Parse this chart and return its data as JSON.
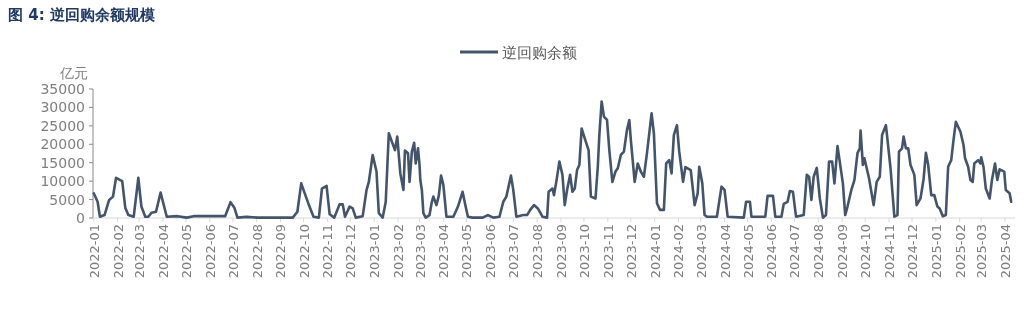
{
  "chart_data": {
    "type": "line",
    "title": "图 4: 逆回购余额规模",
    "ylabel": "亿元",
    "legend": "top",
    "x": [
      "2022-01-01",
      "2022-01-06",
      "2022-01-09",
      "2022-01-15",
      "2022-01-21",
      "2022-01-26",
      "2022-01-30",
      "2022-02-07",
      "2022-02-11",
      "2022-02-15",
      "2022-02-22",
      "2022-02-28",
      "2022-03-04",
      "2022-03-09",
      "2022-03-13",
      "2022-03-17",
      "2022-03-23",
      "2022-03-29",
      "2022-04-06",
      "2022-04-20",
      "2022-05-02",
      "2022-05-11",
      "2022-06-21",
      "2022-06-28",
      "2022-07-03",
      "2022-07-07",
      "2022-07-19",
      "2022-08-02",
      "2022-09-17",
      "2022-09-23",
      "2022-09-28",
      "2022-10-08",
      "2022-10-14",
      "2022-10-21",
      "2022-10-25",
      "2022-10-31",
      "2022-11-04",
      "2022-11-10",
      "2022-11-17",
      "2022-11-21",
      "2022-11-24",
      "2022-11-30",
      "2022-12-04",
      "2022-12-08",
      "2022-12-17",
      "2022-12-22",
      "2022-12-25",
      "2022-12-30",
      "2023-01-04",
      "2023-01-07",
      "2023-01-12",
      "2023-01-16",
      "2023-01-20",
      "2023-01-28",
      "2023-01-31",
      "2023-02-04",
      "2023-02-08",
      "2023-02-10",
      "2023-02-14",
      "2023-02-16",
      "2023-02-19",
      "2023-02-22",
      "2023-02-24",
      "2023-02-27",
      "2023-03-01",
      "2023-03-02",
      "2023-03-04",
      "2023-03-06",
      "2023-03-09",
      "2023-03-14",
      "2023-03-17",
      "2023-03-19",
      "2023-03-23",
      "2023-03-26",
      "2023-03-29",
      "2023-04-01",
      "2023-04-05",
      "2023-04-14",
      "2023-04-20",
      "2023-04-26",
      "2023-04-30",
      "2023-05-03",
      "2023-05-09",
      "2023-05-22",
      "2023-05-29",
      "2023-06-05",
      "2023-06-13",
      "2023-06-18",
      "2023-06-22",
      "2023-06-28",
      "2023-07-01",
      "2023-07-05",
      "2023-07-14",
      "2023-07-19",
      "2023-07-23",
      "2023-07-28",
      "2023-08-02",
      "2023-08-08",
      "2023-08-14",
      "2023-08-16",
      "2023-08-21",
      "2023-08-23",
      "2023-08-26",
      "2023-08-30",
      "2023-09-03",
      "2023-09-06",
      "2023-09-09",
      "2023-09-13",
      "2023-09-16",
      "2023-09-19",
      "2023-09-22",
      "2023-09-25",
      "2023-09-28",
      "2023-10-02",
      "2023-10-07",
      "2023-10-10",
      "2023-10-16",
      "2023-10-19",
      "2023-10-21",
      "2023-10-24",
      "2023-10-27",
      "2023-10-31",
      "2023-11-03",
      "2023-11-07",
      "2023-11-11",
      "2023-11-14",
      "2023-11-18",
      "2023-11-22",
      "2023-11-26",
      "2023-11-29",
      "2023-12-01",
      "2023-12-06",
      "2023-12-10",
      "2023-12-14",
      "2023-12-18",
      "2023-12-22",
      "2023-12-28",
      "2023-12-31",
      "2024-01-04",
      "2024-01-08",
      "2024-01-13",
      "2024-01-16",
      "2024-01-20",
      "2024-01-23",
      "2024-01-26",
      "2024-01-30",
      "2024-02-02",
      "2024-02-07",
      "2024-02-10",
      "2024-02-17",
      "2024-02-22",
      "2024-02-26",
      "2024-02-28",
      "2024-03-03",
      "2024-03-06",
      "2024-03-09",
      "2024-03-22",
      "2024-03-28",
      "2024-04-01",
      "2024-04-05",
      "2024-04-26",
      "2024-04-29",
      "2024-05-04",
      "2024-05-06",
      "2024-05-24",
      "2024-05-27",
      "2024-06-03",
      "2024-06-06",
      "2024-06-14",
      "2024-06-17",
      "2024-06-22",
      "2024-06-25",
      "2024-06-29",
      "2024-07-03",
      "2024-07-13",
      "2024-07-17",
      "2024-07-20",
      "2024-07-23",
      "2024-07-26",
      "2024-07-30",
      "2024-08-03",
      "2024-08-07",
      "2024-08-11",
      "2024-08-15",
      "2024-08-19",
      "2024-08-22",
      "2024-08-26",
      "2024-09-02",
      "2024-09-05",
      "2024-09-08",
      "2024-09-13",
      "2024-09-17",
      "2024-09-21",
      "2024-09-24",
      "2024-09-25",
      "2024-09-28",
      "2024-09-30",
      "2024-10-06",
      "2024-10-12",
      "2024-10-16",
      "2024-10-20",
      "2024-10-23",
      "2024-10-28",
      "2024-11-03",
      "2024-11-08",
      "2024-11-12",
      "2024-11-14",
      "2024-11-18",
      "2024-11-20",
      "2024-11-23",
      "2024-11-26",
      "2024-11-29",
      "2024-12-04",
      "2024-12-07",
      "2024-12-12",
      "2024-12-16",
      "2024-12-19",
      "2024-12-22",
      "2024-12-26",
      "2024-12-30",
      "2025-01-03",
      "2025-01-06",
      "2025-01-10",
      "2025-01-14",
      "2025-01-17",
      "2025-01-21",
      "2025-01-24",
      "2025-01-27",
      "2025-02-02",
      "2025-02-06",
      "2025-02-08",
      "2025-02-12",
      "2025-02-15",
      "2025-02-18",
      "2025-02-20",
      "2025-02-25",
      "2025-02-28",
      "2025-03-01",
      "2025-03-04",
      "2025-03-07",
      "2025-03-12",
      "2025-03-15",
      "2025-03-19",
      "2025-03-22",
      "2025-03-25",
      "2025-03-31",
      "2025-04-02",
      "2025-04-07",
      "2025-04-09"
    ],
    "series": [
      {
        "name": "逆回购余额",
        "color": "#44546a",
        "values": [
          6700,
          4400,
          350,
          800,
          4900,
          5800,
          10900,
          10000,
          2800,
          800,
          350,
          10900,
          3100,
          350,
          350,
          1400,
          1700,
          6900,
          350,
          500,
          100,
          500,
          500,
          4300,
          2800,
          100,
          300,
          100,
          100,
          1700,
          9400,
          3500,
          350,
          100,
          8000,
          8700,
          1000,
          100,
          3700,
          3700,
          350,
          3100,
          2600,
          100,
          500,
          7600,
          9800,
          17100,
          12600,
          1300,
          100,
          4400,
          23000,
          18400,
          22100,
          12100,
          7600,
          18300,
          17600,
          9800,
          18000,
          20400,
          14800,
          18900,
          14400,
          10300,
          7600,
          1300,
          100,
          800,
          4400,
          5800,
          3500,
          6000,
          11500,
          9000,
          350,
          350,
          3100,
          7100,
          3100,
          350,
          100,
          100,
          800,
          100,
          350,
          4400,
          5800,
          11500,
          7600,
          350,
          800,
          800,
          2200,
          3500,
          2600,
          350,
          100,
          7100,
          8000,
          6200,
          9800,
          15300,
          11700,
          3500,
          7600,
          11700,
          7100,
          8000,
          13000,
          14400,
          24300,
          21600,
          18400,
          5800,
          5300,
          13900,
          22500,
          31600,
          27500,
          26600,
          18400,
          9800,
          12600,
          13500,
          17100,
          18000,
          23900,
          26600,
          21200,
          9800,
          14800,
          12600,
          11200,
          17600,
          28400,
          23000,
          4000,
          2200,
          2200,
          14800,
          15700,
          12100,
          22500,
          25200,
          18000,
          9800,
          13800,
          13000,
          3500,
          6700,
          13900,
          9400,
          800,
          350,
          350,
          8500,
          7600,
          350,
          100,
          4400,
          4400,
          350,
          350,
          6000,
          6000,
          350,
          350,
          3800,
          4400,
          7300,
          7100,
          350,
          800,
          11700,
          11200,
          4900,
          11200,
          13600,
          5300,
          100,
          800,
          15300,
          15300,
          9400,
          19500,
          9400,
          800,
          3100,
          7600,
          10300,
          17600,
          18900,
          23700,
          14400,
          16200,
          10800,
          3500,
          9800,
          11200,
          22500,
          25200,
          13500,
          350,
          800,
          18000,
          18900,
          22100,
          18900,
          18900,
          14400,
          11700,
          3500,
          5300,
          10500,
          17700,
          14400,
          6200,
          6200,
          3100,
          2600,
          500,
          800,
          13900,
          15700,
          21200,
          26100,
          23400,
          19800,
          16200,
          13900,
          10300,
          9800,
          14800,
          15700,
          14800,
          16500,
          13900,
          8000,
          5300,
          10300,
          14800,
          10300,
          13200,
          12600,
          7600,
          6700,
          4400
        ]
      }
    ],
    "xlim": [
      "2021-12-31",
      "2025-04-14"
    ],
    "xticks": [
      "2022-01",
      "2022-02",
      "2022-03",
      "2022-04",
      "2022-05",
      "2022-06",
      "2022-07",
      "2022-08",
      "2022-09",
      "2022-10",
      "2022-11",
      "2022-12",
      "2023-01",
      "2023-02",
      "2023-03",
      "2023-04",
      "2023-05",
      "2023-06",
      "2023-07",
      "2023-08",
      "2023-09",
      "2023-10",
      "2023-11",
      "2023-12",
      "2024-01",
      "2024-02",
      "2024-03",
      "2024-04",
      "2024-05",
      "2024-06",
      "2024-07",
      "2024-08",
      "2024-09",
      "2024-10",
      "2024-11",
      "2024-12",
      "2025-01",
      "2025-02",
      "2025-03",
      "2025-04"
    ],
    "ylim": [
      0,
      35000
    ],
    "yticks": [
      0,
      5000,
      10000,
      15000,
      20000,
      25000,
      30000,
      35000
    ]
  }
}
